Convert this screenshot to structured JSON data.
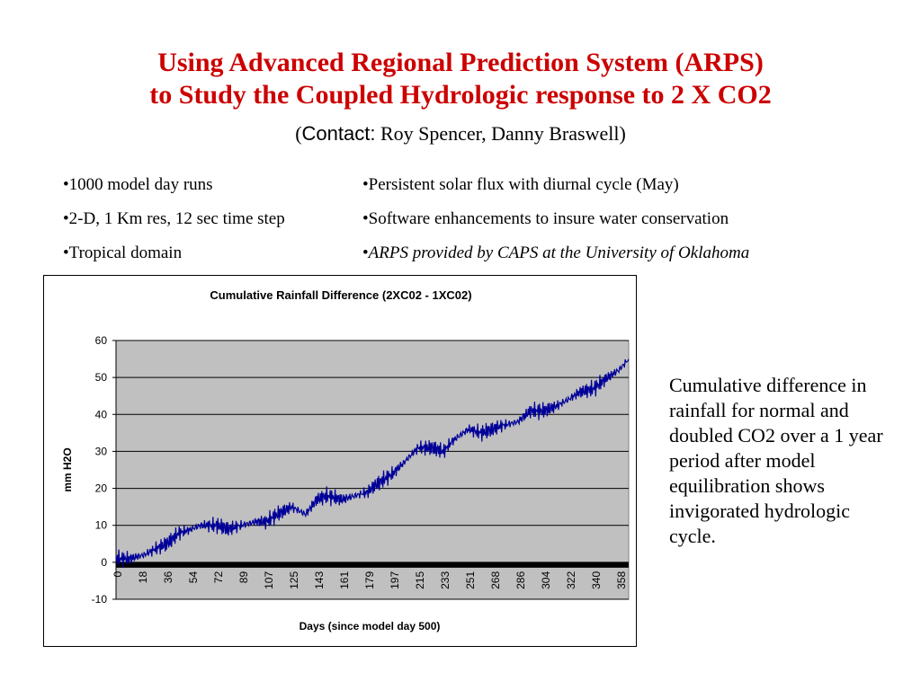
{
  "slide": {
    "title_line1": "Using Advanced Regional Prediction System (ARPS)",
    "title_line2": "to Study the Coupled Hydrologic response to 2 X CO2",
    "contact_open": "(",
    "contact_label": "Contact:",
    "contact_names": " Roy Spencer, Danny Braswell)",
    "bullets_left": [
      "•1000 model day runs",
      "•2-D, 1 Km res, 12 sec time step",
      "•Tropical domain"
    ],
    "bullets_right": [
      "•Persistent solar flux with diurnal cycle (May)",
      "•Software enhancements to insure water conservation",
      "•ARPS provided by CAPS at the University of Oklahoma"
    ],
    "bullet_right_3_prefix": "•",
    "bullet_right_3_italic": "ARPS provided by CAPS at the University of Oklahoma",
    "caption": "Cumulative difference in rainfall for normal and doubled CO2 over a 1 year period after model equilibration shows invigorated hydrologic cycle."
  },
  "chart_data": {
    "type": "line",
    "title": "Cumulative Rainfall Difference (2XC02 - 1XC02)",
    "xlabel": "Days (since model day 500)",
    "ylabel": "mm H2O",
    "ylim": [
      -10,
      60
    ],
    "yticks": [
      60,
      50,
      40,
      30,
      20,
      10,
      0,
      -10
    ],
    "xlim": [
      0,
      365
    ],
    "xticks": [
      "0",
      "18",
      "36",
      "54",
      "72",
      "89",
      "107",
      "125",
      "143",
      "161",
      "179",
      "197",
      "215",
      "233",
      "251",
      "268",
      "286",
      "304",
      "322",
      "340",
      "358"
    ],
    "grid": true,
    "legend": "none",
    "colors": {
      "series": "#000099",
      "plot_bg": "#c0c0c0",
      "zero_band": "#000000"
    },
    "series": [
      {
        "x": [
          0,
          10,
          20,
          30,
          36,
          45,
          54,
          60,
          72,
          80,
          89,
          100,
          107,
          115,
          125,
          135,
          143,
          150,
          161,
          170,
          179,
          185,
          197,
          205,
          215,
          225,
          233,
          240,
          251,
          260,
          268,
          275,
          286,
          295,
          304,
          312,
          322,
          330,
          340,
          350,
          358,
          365
        ],
        "values": [
          1,
          1,
          2,
          4,
          5,
          8,
          9,
          10,
          10,
          9,
          10,
          11,
          11,
          13,
          15,
          13,
          17,
          18,
          17,
          18,
          19,
          21,
          24,
          27,
          31,
          31,
          30,
          33,
          36,
          35,
          36,
          37,
          38,
          41,
          41,
          42,
          44,
          46,
          47,
          50,
          52,
          55
        ]
      }
    ]
  }
}
